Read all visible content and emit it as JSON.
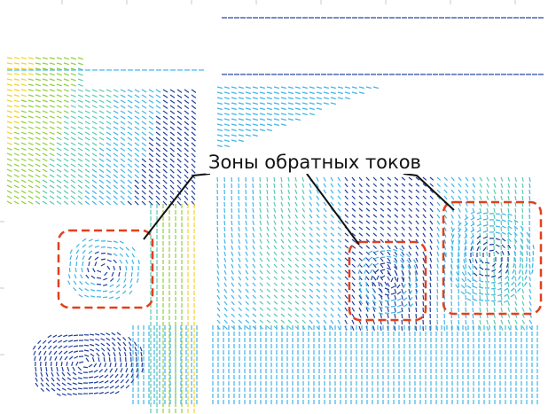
{
  "caption": "Зоны обратных токов",
  "colors": {
    "low_speed": "#1f3f9c",
    "mid_low": "#3fb5e8",
    "mid": "#58c9b0",
    "mid_high": "#8fce3a",
    "high_speed": "#f2d22a",
    "zone_outline": "#e0401f",
    "leader_line": "#111111",
    "grid": "#c8c8c8"
  },
  "zones_marked": 3
}
